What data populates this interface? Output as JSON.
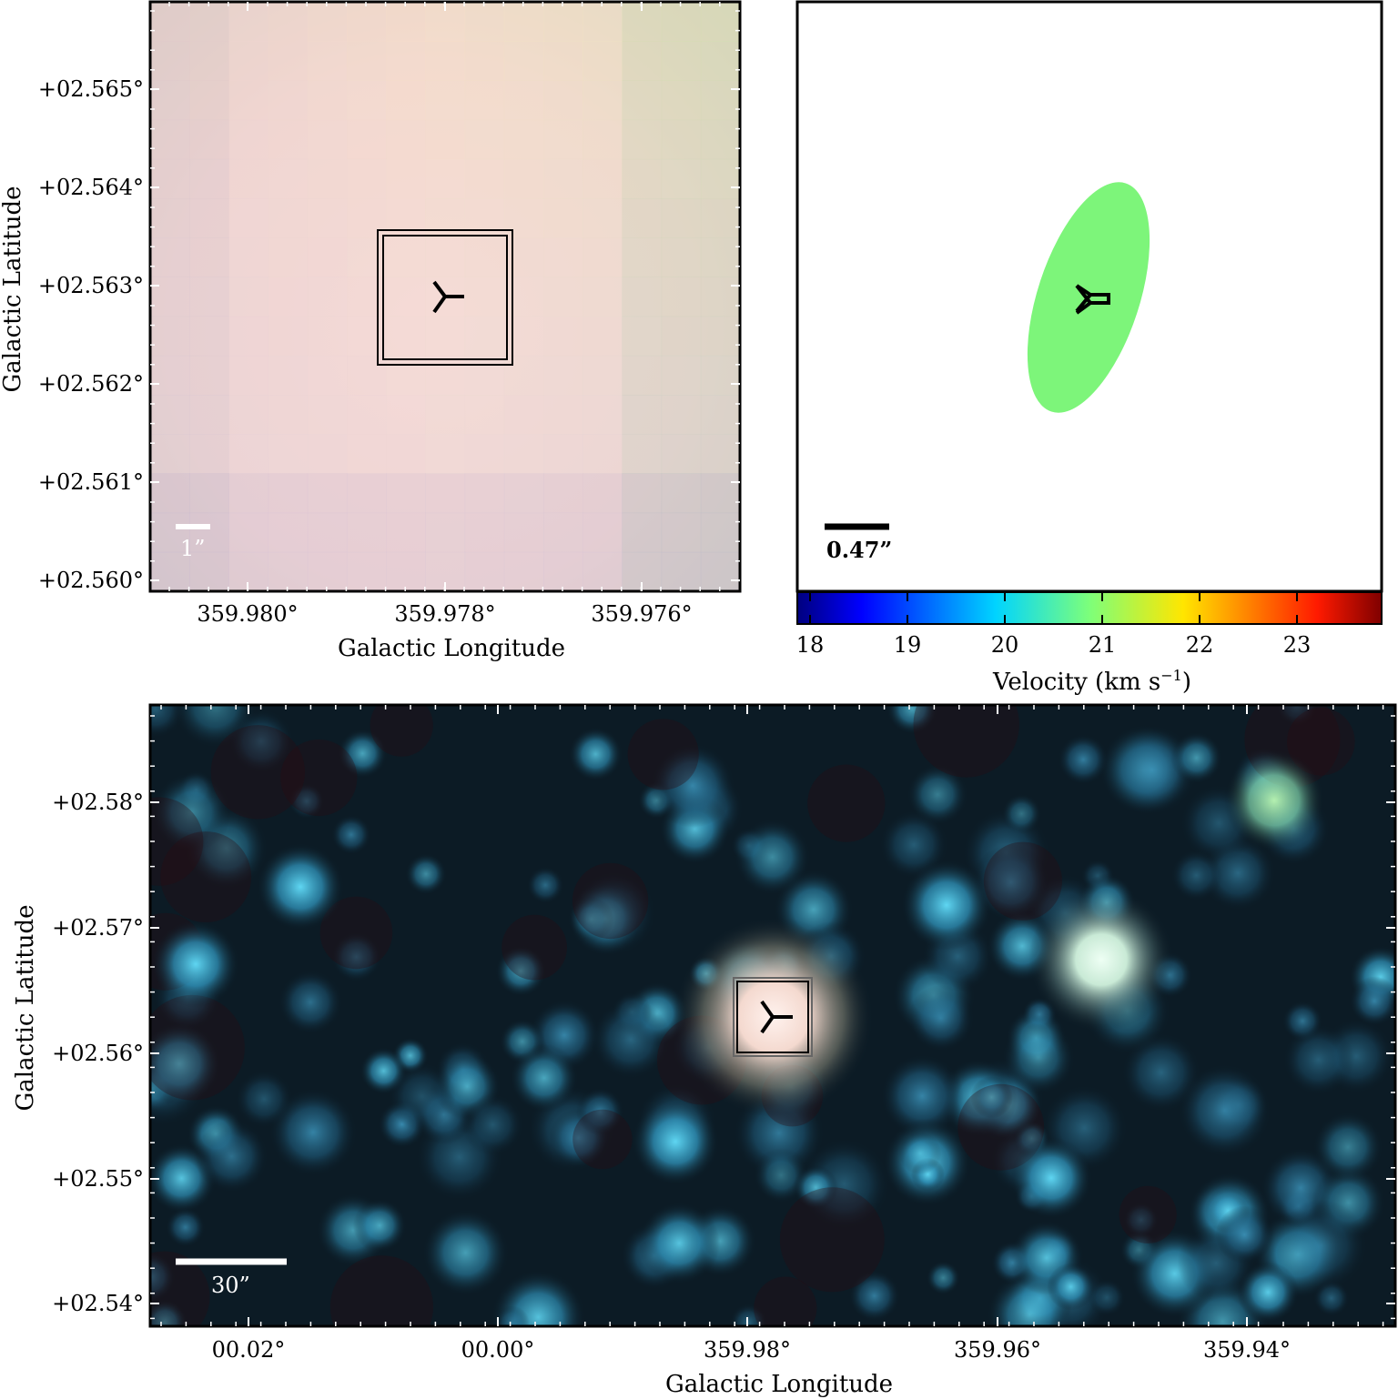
{
  "panel_top_left": {
    "xlabel": "Galactic Longitude",
    "ylabel": "Galactic Latitude",
    "x_ticks": [
      "359.980°",
      "359.978°",
      "359.976°"
    ],
    "y_ticks": [
      "+02.565°",
      "+02.564°",
      "+02.563°",
      "+02.562°",
      "+02.561°",
      "+02.560°"
    ],
    "scale_bar_label": "1”"
  },
  "panel_top_right": {
    "scale_bar_label": "0.47”",
    "ellipse_color": "#7df57a",
    "colorbar": {
      "label_main": "Velocity (km s",
      "label_exp": "−1",
      "label_close": ")",
      "ticks": [
        "18",
        "19",
        "20",
        "21",
        "22",
        "23"
      ],
      "range": [
        17.85,
        23.85
      ]
    }
  },
  "panel_bottom": {
    "xlabel": "Galactic Longitude",
    "ylabel": "Galactic Latitude",
    "x_ticks": [
      "00.02°",
      "00.00°",
      "359.98°",
      "359.96°",
      "359.94°"
    ],
    "y_ticks": [
      "+02.58°",
      "+02.57°",
      "+02.56°",
      "+02.55°",
      "+02.54°"
    ],
    "scale_bar_label": "30”"
  }
}
